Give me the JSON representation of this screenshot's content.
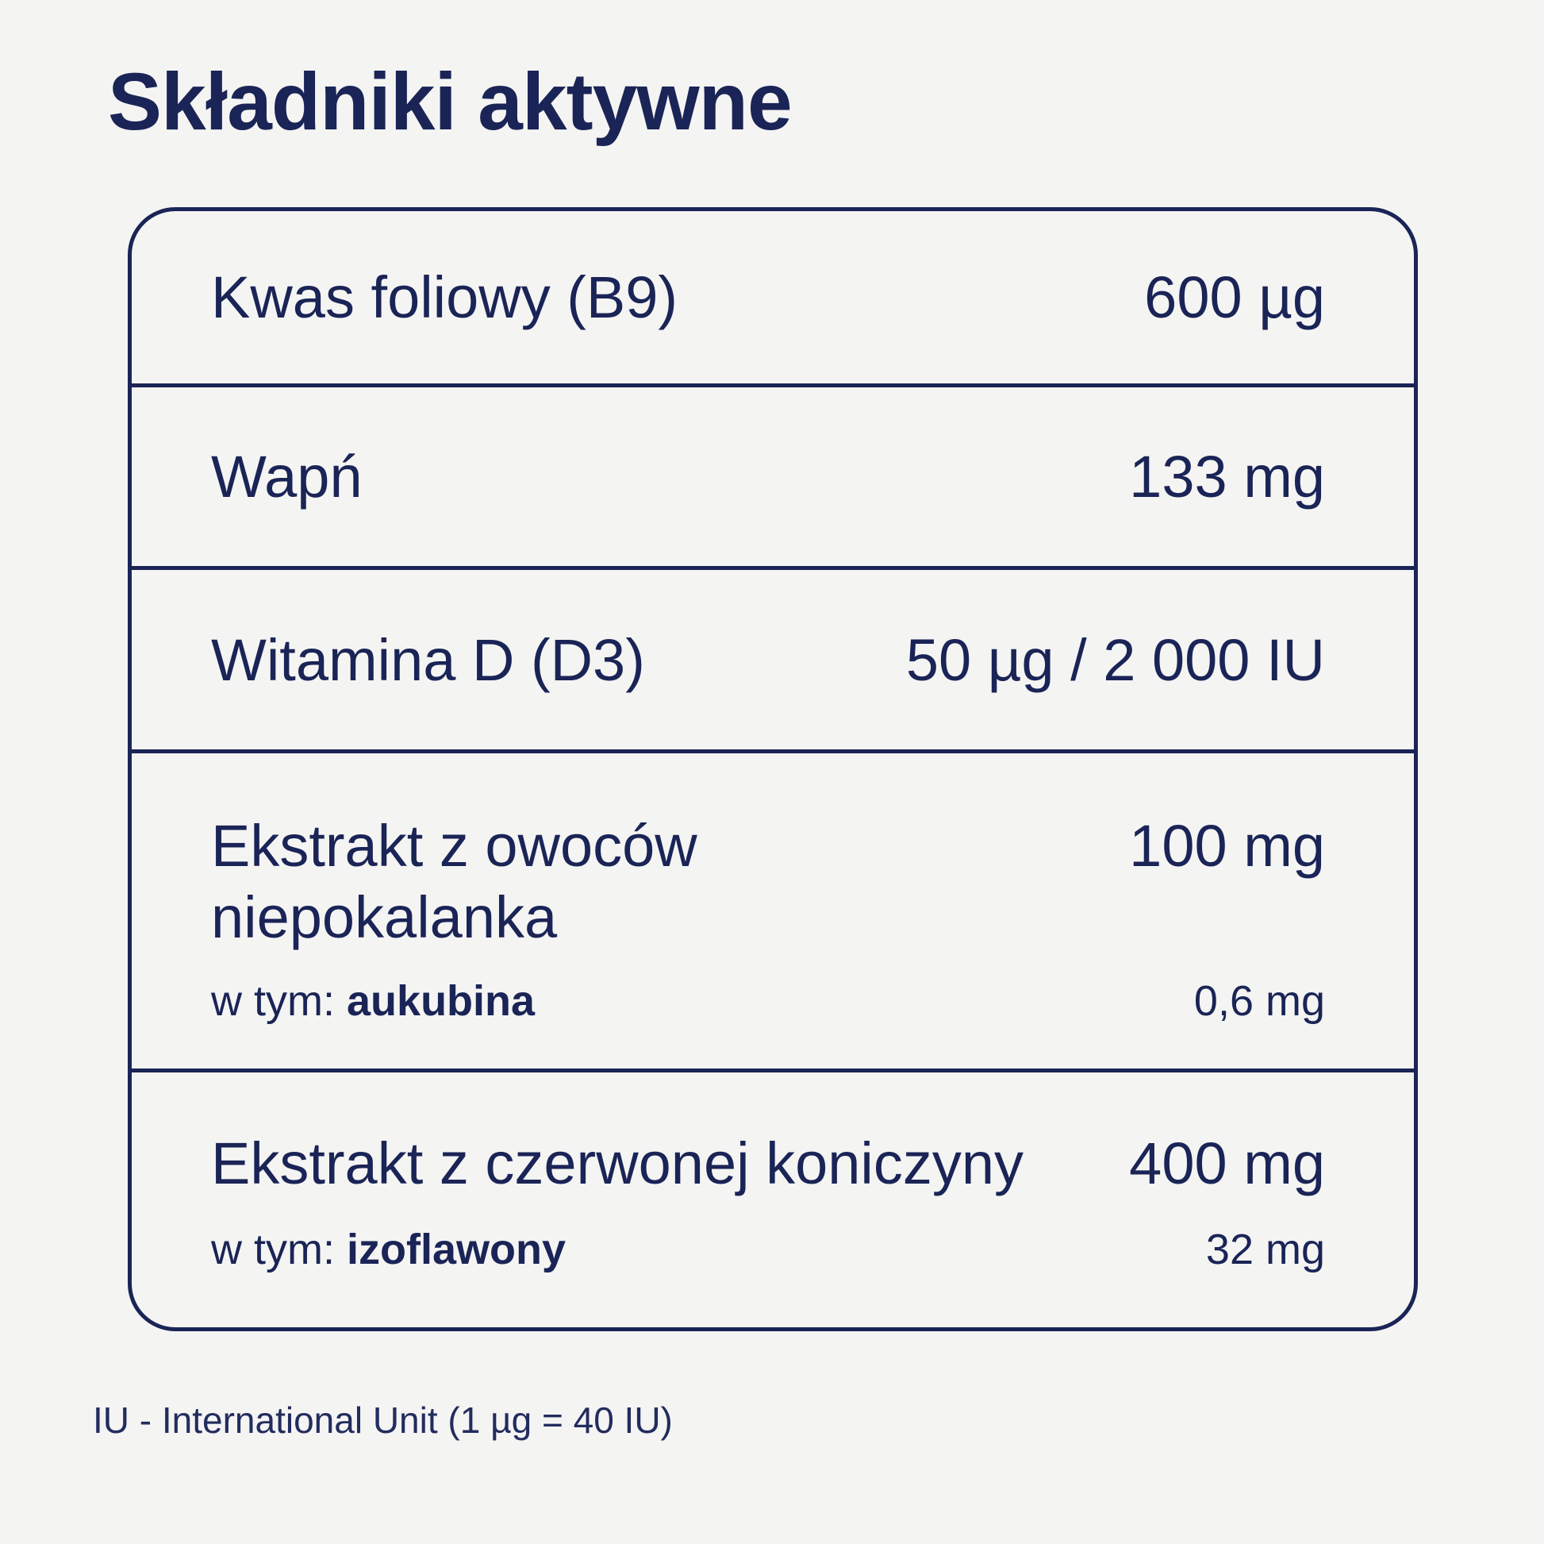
{
  "page": {
    "title": "Składniki aktywne",
    "footnote": "IU - International Unit (1 µg = 40 IU)"
  },
  "colors": {
    "background": "#F4F4F3",
    "ink_navy": "#1A2456"
  },
  "table": {
    "rows": [
      {
        "label": "Kwas foliowy (B9)",
        "value": "600 µg"
      },
      {
        "label": "Wapń",
        "value": "133 mg"
      },
      {
        "label": "Witamina D (D3)",
        "value": "50 µg / 2 000 IU"
      },
      {
        "label": "Ekstrakt z owoców niepokalanka",
        "value": "100 mg",
        "sub_prefix": "w tym:",
        "sub_name": "aukubina",
        "sub_value": "0,6 mg"
      },
      {
        "label": "Ekstrakt z czerwonej koniczyny",
        "value": "400 mg",
        "sub_prefix": "w tym:",
        "sub_name": "izoflawony",
        "sub_value": "32 mg"
      }
    ]
  }
}
